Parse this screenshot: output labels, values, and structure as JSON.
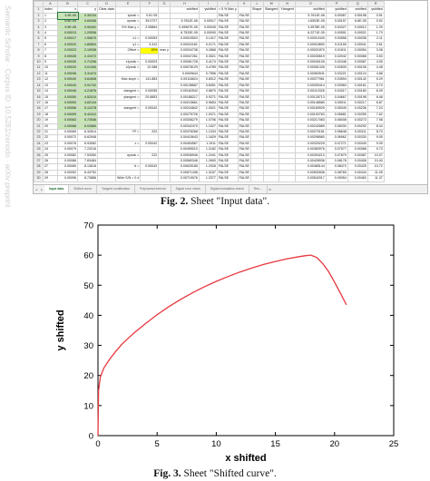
{
  "side_text": "Semantic Scholar · Corpus ID: 10.5281/zenodo · arXiv preprint",
  "sheet": {
    "columns": [
      "",
      "A",
      "B",
      "C",
      "D",
      "E",
      "F",
      "G",
      "H",
      "I",
      "J",
      "K",
      "L",
      "M",
      "N",
      "O",
      "P",
      "Q",
      "R"
    ],
    "rows": [
      {
        "n": "1",
        "A": "Index",
        "B": "x",
        "C": "y",
        "D": "Clear data",
        "E": "",
        "F": "",
        "G": "",
        "H": "",
        "I": "",
        "J": "",
        "K": "",
        "L": "",
        "M": "",
        "N": "",
        "O": "",
        "P": "",
        "Q": "",
        "R": ""
      },
      {
        "n": "2",
        "A": "1",
        "B": "3.3E-05",
        "C": "0.30134",
        "E": "εpeak =",
        "F": "0.81 05",
        "H": "",
        "I": "",
        "J": "FALSE",
        "K": "FALSE",
        "O": "5.7611E-06",
        "P": "0.00067",
        "Q": "0.50198",
        "R": "0.51"
      },
      {
        "n": "3",
        "A": "2",
        "B": "6.6E-05",
        "C": "0.60268",
        "E": "σpeak =",
        "F": "39.0727",
        "H": "5.7811E-06",
        "I": "0.00017",
        "J": "FALSE",
        "K": "FALSE",
        "O": "1.6503E-05",
        "P": "0.00157",
        "Q": "6.6E-05",
        "R": "0.92"
      },
      {
        "n": "4",
        "A": "3",
        "B": "9.9E-05",
        "C": "0.90402",
        "E": "5% Max y =",
        "F": "2.95864",
        "H": "0.49967E-05",
        "I": "0.00045",
        "J": "FALSE",
        "K": "FALSE",
        "O": "3.4578E-05",
        "P": "0.00327",
        "Q": "0.00012",
        "R": "1.29"
      },
      {
        "n": "5",
        "A": "4",
        "B": "0.00013",
        "C": "1.20536",
        "E": "",
        "F": "",
        "H": "8.7533E-05",
        "I": "0.00090",
        "J": "FALSE",
        "K": "FALSE",
        "O": "6.2271E-05",
        "P": "0.00591",
        "Q": "0.00021",
        "R": "1.70"
      },
      {
        "n": "6",
        "A": "5",
        "B": "0.00017",
        "C": "1.50670",
        "E": "x1 =",
        "F": "0.00053",
        "H": "0.00015503",
        "I": "0.1417",
        "J": "FALSE",
        "K": "FALSE",
        "O": "0.00010443",
        "P": "0.00558",
        "Q": "0.00038",
        "R": "2.11"
      },
      {
        "n": "7",
        "A": "6",
        "B": "0.00020",
        "C": "1.80804",
        "E": "y1 =",
        "F": "3.312",
        "H": "0.00024181",
        "I": "0.2171",
        "J": "FALSE",
        "K": "FALSE",
        "O": "0.00015890",
        "P": "0.01155",
        "Q": "0.00041",
        "R": "2.61"
      },
      {
        "n": "8",
        "A": "7",
        "B": "0.00023",
        "C": "2.10938",
        "E": "Offset =",
        "F": "15%",
        "G": "max y",
        "H": "0.00034738",
        "I": "0.2868",
        "J": "FALSE",
        "K": "FALSE",
        "O": "0.00021870",
        "P": "0.01611",
        "Q": "0.00054",
        "R": "3.08"
      },
      {
        "n": "9",
        "A": "8",
        "B": "0.00026",
        "C": "2.41072",
        "E": "",
        "F": "",
        "H": "0.00047261",
        "I": "0.3521",
        "J": "FALSE",
        "K": "FALSE",
        "O": "0.00030619",
        "P": "0.02042",
        "Q": "0.00068",
        "R": "3.53"
      },
      {
        "n": "10",
        "A": "9",
        "B": "0.00030",
        "C": "2.71206",
        "E": "x1peak =",
        "F": "0.00003",
        "H": "0.00061728",
        "I": "0.4174",
        "J": "FALSE",
        "K": "FALSE",
        "O": "0.00040105",
        "P": "0.02446",
        "Q": "0.00087",
        "R": "4.05"
      },
      {
        "n": "11",
        "A": "10",
        "B": "0.00033",
        "C": "3.01340",
        "E": "x2peak =",
        "F": "12.088",
        "H": "0.00078129",
        "I": "0.4789",
        "J": "FALSE",
        "K": "FALSE",
        "O": "0.00051326",
        "P": "0.02839",
        "Q": "0.00106",
        "R": "4.48"
      },
      {
        "n": "12",
        "A": "11",
        "B": "0.00036",
        "C": "3.31474",
        "E": "",
        "F": "",
        "H": "0.0009644",
        "I": "0.7556",
        "J": "FALSE",
        "K": "FALSE",
        "N": "",
        "O": "0.00063941",
        "P": "0.03221",
        "Q": "0.00124",
        "R": "4.88"
      },
      {
        "n": "13",
        "A": "12",
        "B": "0.00040",
        "C": "3.61608",
        "E": "Max slope =",
        "F": "141.883",
        "H": "0.00116624",
        "I": "0.8012",
        "J": "FALSE",
        "K": "FALSE",
        "O": "0.00077961",
        "P": "0.03594",
        "Q": "0.00142",
        "R": "5.29"
      },
      {
        "n": "14",
        "A": "13",
        "B": "0.00043",
        "C": "3.91742",
        "E": "",
        "F": "",
        "H": "0.00138667",
        "I": "0.8451",
        "J": "FALSE",
        "K": "FALSE",
        "O": "0.00093414",
        "P": "0.03960",
        "Q": "0.00161",
        "R": "5.70"
      },
      {
        "n": "15",
        "A": "14",
        "B": "0.00046",
        "C": "4.21876",
        "E": "xtangent =",
        "F": "0.00055",
        "H": "0.00162542",
        "I": "0.8870",
        "J": "FALSE",
        "K": "FALSE",
        "O": "0.00110326",
        "P": "0.04317",
        "Q": "0.00180",
        "R": "6.09"
      },
      {
        "n": "16",
        "A": "15",
        "B": "0.00050",
        "C": "4.52010",
        "E": "ytangent =",
        "F": "20.6853",
        "H": "0.00188217",
        "I": "0.9271",
        "J": "FALSE",
        "K": "FALSE",
        "O": "0.00128713",
        "P": "0.04667",
        "Q": "0.00198",
        "R": "6.48"
      },
      {
        "n": "17",
        "A": "16",
        "B": "0.00053",
        "C": "4.82144",
        "E": "",
        "F": "",
        "H": "0.00215661",
        "I": "0.9654",
        "J": "FALSE",
        "K": "FALSE",
        "O": "0.00148580",
        "P": "0.05011",
        "Q": "0.00217",
        "R": "6.87"
      },
      {
        "n": "18",
        "A": "17",
        "B": "0.00056",
        "C": "5.12278",
        "E": "xtangent =",
        "F": "0.00042",
        "H": "0.00244842",
        "I": "1.0021",
        "J": "FALSE",
        "K": "FALSE",
        "O": "0.00169929",
        "P": "0.05349",
        "Q": "0.00236",
        "R": "7.24"
      },
      {
        "n": "19",
        "A": "18",
        "B": "0.00059",
        "C": "5.42412",
        "E": "",
        "F": "",
        "H": "0.00275726",
        "I": "1.0371",
        "J": "FALSE",
        "K": "FALSE",
        "O": "0.00192763",
        "P": "0.05681",
        "Q": "0.00255",
        "R": "7.62"
      },
      {
        "n": "20",
        "A": "19",
        "B": "0.00063",
        "C": "5.72546",
        "E": "",
        "F": "",
        "H": "0.00308279",
        "I": "1.0706",
        "J": "FALSE",
        "K": "FALSE",
        "O": "0.00217083",
        "P": "0.06008",
        "Q": "0.00273",
        "R": "7.98"
      },
      {
        "n": "21",
        "A": "20",
        "B": "0.00066",
        "C": "6.02680",
        "E": "",
        "F": "",
        "H": "0.00342470",
        "I": "1.1027",
        "J": "FALSE",
        "K": "FALSE",
        "O": "0.00242889",
        "P": "0.06330",
        "Q": "0.00292",
        "R": "8.34"
      },
      {
        "n": "22",
        "A": "21",
        "B": "0.00069",
        "C": "6.32814",
        "E": "R² =",
        "F": "222",
        "H": "0.00378268",
        "I": "1.1334",
        "J": "FALSE",
        "K": "FALSE",
        "O": "0.00270181",
        "P": "0.06648",
        "Q": "0.00311",
        "R": "8.70"
      },
      {
        "n": "23",
        "A": "22",
        "B": "0.00072",
        "C": "6.62948",
        "E": "",
        "F": "",
        "H": "0.00415643",
        "I": "1.1629",
        "J": "FALSE",
        "K": "FALSE",
        "O": "0.00298960",
        "P": "0.06962",
        "Q": "0.00330",
        "R": "9.05"
      },
      {
        "n": "24",
        "A": "23",
        "B": "0.00076",
        "C": "6.93082",
        "E": "ε =",
        "F": "0.00042",
        "H": "0.00454567",
        "I": "1.1911",
        "J": "FALSE",
        "K": "FALSE",
        "O": "0.00329225",
        "P": "0.07271",
        "Q": "0.00349",
        "R": "9.39"
      },
      {
        "n": "25",
        "A": "24",
        "B": "0.00079",
        "C": "7.23216",
        "E": "",
        "F": "",
        "H": "0.00495010",
        "I": "1.2182",
        "J": "FALSE",
        "K": "FALSE",
        "O": "0.00360976",
        "P": "0.07577",
        "Q": "0.00368",
        "R": "9.73"
      },
      {
        "n": "26",
        "A": "25",
        "B": "0.00082",
        "C": "7.53350",
        "E": "σpeak =",
        "F": "222",
        "H": "0.00536946",
        "I": "1.2441",
        "J": "FALSE",
        "K": "FALSE",
        "O": "0.00394213",
        "P": "0.07879",
        "Q": "0.00387",
        "R": "10.07"
      },
      {
        "n": "27",
        "A": "26",
        "B": "0.00086",
        "C": "7.83484",
        "E": "",
        "F": "",
        "H": "0.00580346",
        "I": "1.2690",
        "J": "FALSE",
        "K": "FALSE",
        "O": "0.00428936",
        "P": "0.08178",
        "Q": "0.00406",
        "R": "10.40"
      },
      {
        "n": "28",
        "A": "27",
        "B": "0.00089",
        "C": "8.13618",
        "E": "6 =",
        "F": "0.00042",
        "H": "0.00625185",
        "I": "1.2928",
        "J": "FALSE",
        "K": "FALSE",
        "O": "0.00465144",
        "P": "0.08473",
        "Q": "0.00425",
        "R": "10.72"
      },
      {
        "n": "29",
        "A": "28",
        "B": "0.00092",
        "C": "8.43752",
        "E": "",
        "F": "",
        "H": "0.00671436",
        "I": "1.3157",
        "J": "FALSE",
        "K": "FALSE",
        "O": "0.00502838",
        "P": "0.08765",
        "Q": "0.00444",
        "R": "11.05"
      },
      {
        "n": "30",
        "A": "29",
        "B": "0.00096",
        "C": "8.73886",
        "E": "Wide S/N = 0.4",
        "F": "",
        "H": "0.00719076",
        "I": "1.3377",
        "J": "FALSE",
        "K": "FALSE",
        "O": "0.00542017",
        "P": "0.09054",
        "Q": "0.00463",
        "R": "11.37"
      }
    ],
    "header_row2": {
      "H": "xshifted",
      "I": "yshifted",
      "J": "> 5 % Max y",
      "K": "",
      "L": "Shape",
      "M": "Stangent",
      "N": "Ytangent",
      "O": "xshifted",
      "P": "yshifted",
      "Q": "xshifted",
      "R": "yshifted"
    },
    "tabs": [
      "Input data",
      "Shifted curve",
      "Tangent modification",
      "Polynomial interval",
      "Signal error check",
      "Digital modulation check",
      "Res..."
    ],
    "active_tab": "Input data"
  },
  "captions": {
    "fig2_label": "Fig. 2.",
    "fig2_text": " Sheet \"Input data\".",
    "fig3_label": "Fig. 3.",
    "fig3_text": " Sheet \"Shifted curve\"."
  },
  "chart_data": {
    "type": "line",
    "title": "",
    "xlabel": "x shifted",
    "ylabel": "y shifted",
    "xlim": [
      0,
      25
    ],
    "ylim": [
      0,
      70
    ],
    "xticks": [
      0,
      5,
      10,
      15,
      20,
      25
    ],
    "yticks": [
      0,
      10,
      20,
      30,
      40,
      50,
      60,
      70
    ],
    "grid": false,
    "legend": "none",
    "series": [
      {
        "color": "#e8373f",
        "x": [
          0,
          0.05,
          0.2,
          0.5,
          1,
          1.5,
          2,
          3,
          4,
          5,
          6,
          7,
          8,
          9,
          10,
          11,
          12,
          13,
          14,
          15,
          16,
          17,
          17.5,
          18,
          18.5,
          19,
          19.5,
          20,
          20.5,
          21
        ],
        "y": [
          0,
          15,
          19.5,
          22.5,
          25.5,
          28,
          30.3,
          34,
          37.2,
          40.2,
          42.9,
          45.3,
          47.5,
          49.5,
          51.3,
          52.9,
          54.4,
          55.7,
          56.9,
          57.9,
          58.8,
          59.5,
          59.8,
          60,
          59.2,
          57.2,
          54.5,
          51,
          47.3,
          43.5
        ]
      }
    ]
  }
}
